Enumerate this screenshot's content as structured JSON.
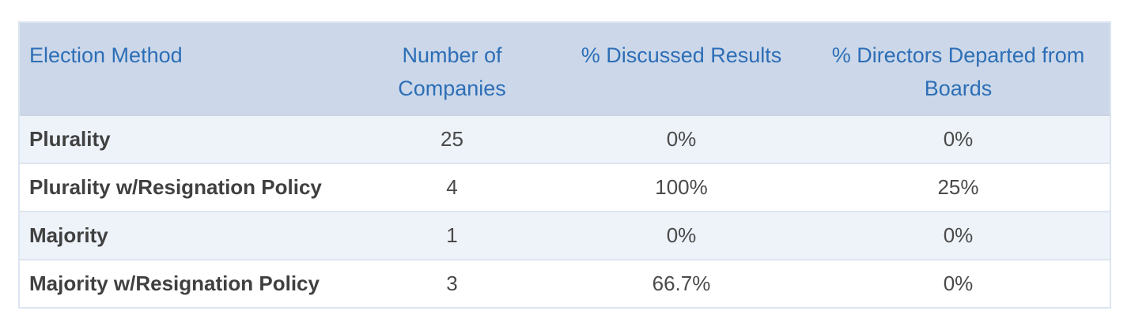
{
  "table": {
    "columns": [
      "Election Method",
      "Number of Companies",
      "% Discussed Results",
      "% Directors Departed from Boards"
    ],
    "rows": [
      {
        "method": "Plurality",
        "companies": "25",
        "discussed": "0%",
        "departed": "0%"
      },
      {
        "method": "Plurality w/Resignation Policy",
        "companies": "4",
        "discussed": "100%",
        "departed": "25%"
      },
      {
        "method": "Majority",
        "companies": "1",
        "discussed": "0%",
        "departed": "0%"
      },
      {
        "method": "Majority w/Resignation Policy",
        "companies": "3",
        "discussed": "66.7%",
        "departed": "0%"
      }
    ]
  },
  "colors": {
    "header_bg": "#ccd8e9",
    "header_text": "#2d6eb6",
    "row_alt_bg": "#eef3fa",
    "row_bg": "#ffffff",
    "body_text": "#404040",
    "num_text": "#4a4a4a",
    "outer_border": "#dce5f1",
    "header_divider": "#cbd3e0",
    "row_divider": "#dde5f0"
  },
  "chart_data": {
    "type": "table",
    "title": "",
    "columns": [
      "Election Method",
      "Number of Companies",
      "% Discussed Results",
      "% Directors Departed from Boards"
    ],
    "rows": [
      [
        "Plurality",
        25,
        "0%",
        "0%"
      ],
      [
        "Plurality w/Resignation Policy",
        4,
        "100%",
        "25%"
      ],
      [
        "Majority",
        1,
        "0%",
        "0%"
      ],
      [
        "Majority w/Resignation Policy",
        3,
        "66.7%",
        "0%"
      ]
    ],
    "layout": {
      "header_style": "light-blue band, blue text, top-aligned, wrapped headers",
      "row_striping": "alternating pale-blue / white starting pale-blue",
      "column_alignment": [
        "left",
        "center",
        "center",
        "center"
      ],
      "grid": "horizontal dividers only, no vertical lines"
    }
  }
}
